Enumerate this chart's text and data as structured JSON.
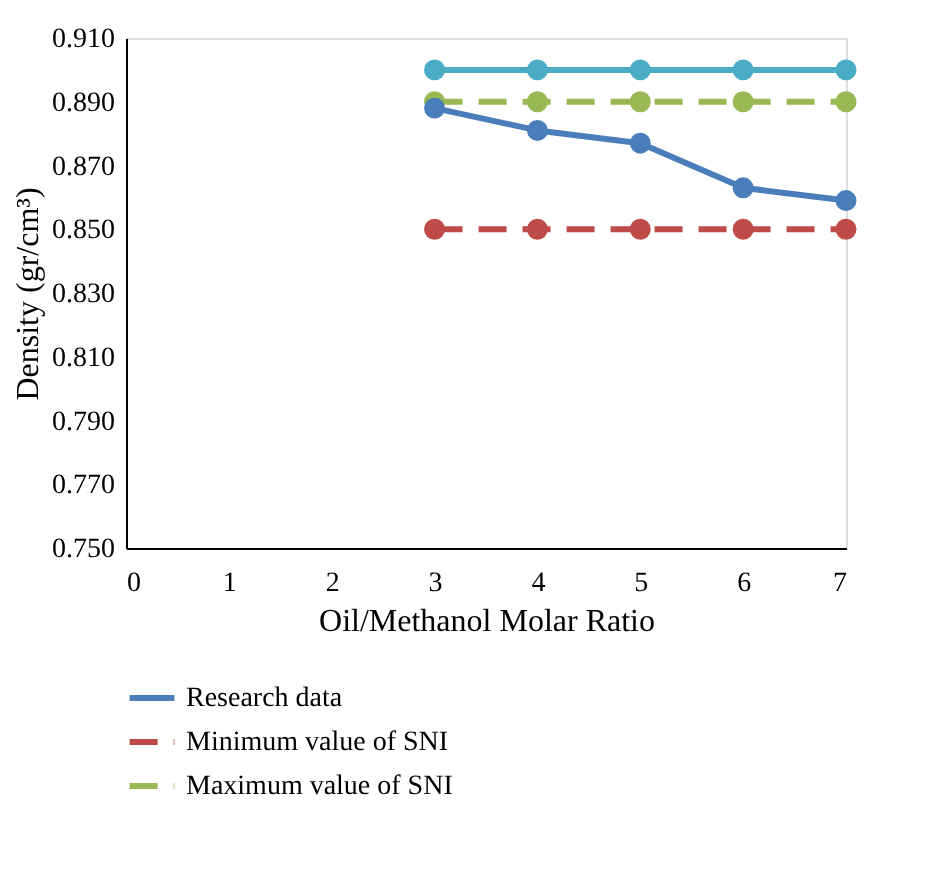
{
  "chart_data": {
    "type": "line",
    "xlabel": "Oil/Methanol Molar Ratio",
    "ylabel": "Density (gr/cm³)",
    "x": [
      3,
      4,
      5,
      6,
      7
    ],
    "xlim": [
      0,
      7
    ],
    "xticks": [
      0,
      1,
      2,
      3,
      4,
      5,
      6,
      7
    ],
    "ylim": [
      0.75,
      0.91
    ],
    "yticks": [
      {
        "value": 0.75,
        "label": "0.750"
      },
      {
        "value": 0.77,
        "label": "0.770"
      },
      {
        "value": 0.79,
        "label": "0.790"
      },
      {
        "value": 0.81,
        "label": "0.810"
      },
      {
        "value": 0.83,
        "label": "0.830"
      },
      {
        "value": 0.85,
        "label": "0.850"
      },
      {
        "value": 0.87,
        "label": "0.870"
      },
      {
        "value": 0.89,
        "label": "0.890"
      },
      {
        "value": 0.91,
        "label": "0.910"
      }
    ],
    "marker": "circle",
    "grid": false,
    "legend": "bottom",
    "series": [
      {
        "name": "Research data",
        "color": "#4a7ebb",
        "line_style": "solid",
        "values": [
          0.888,
          0.881,
          0.877,
          0.863,
          0.859
        ]
      },
      {
        "name": "Minimum value of SNI",
        "color": "#be4b48",
        "line_style": "dashed",
        "values": [
          0.85,
          0.85,
          0.85,
          0.85,
          0.85
        ]
      },
      {
        "name": "Maximum value of SNI",
        "color": "#98b954",
        "line_style": "dashed",
        "values": [
          0.89,
          0.89,
          0.89,
          0.89,
          0.89
        ]
      },
      {
        "color": "#4bacc6",
        "line_style": "solid",
        "values": [
          0.9,
          0.9,
          0.9,
          0.9,
          0.9
        ]
      }
    ]
  }
}
